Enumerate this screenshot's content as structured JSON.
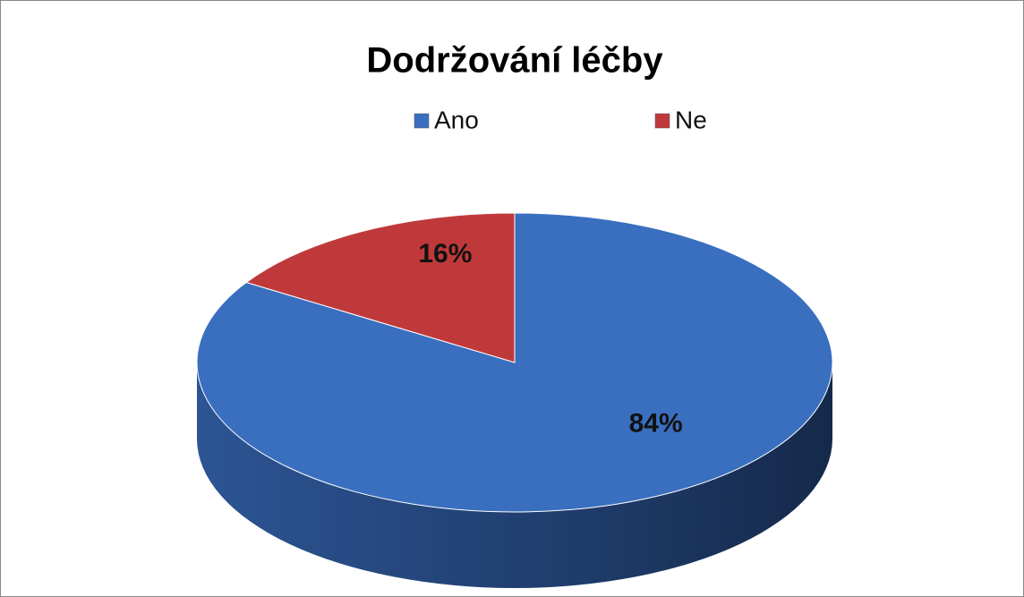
{
  "chart_data": {
    "type": "pie",
    "title": "Dodržování léčby",
    "categories": [
      "Ano",
      "Ne"
    ],
    "values": [
      84,
      16
    ],
    "value_labels": [
      "84%",
      "16%"
    ],
    "colors": [
      "#3a6fbf",
      "#c0393a"
    ],
    "legend": "top"
  }
}
